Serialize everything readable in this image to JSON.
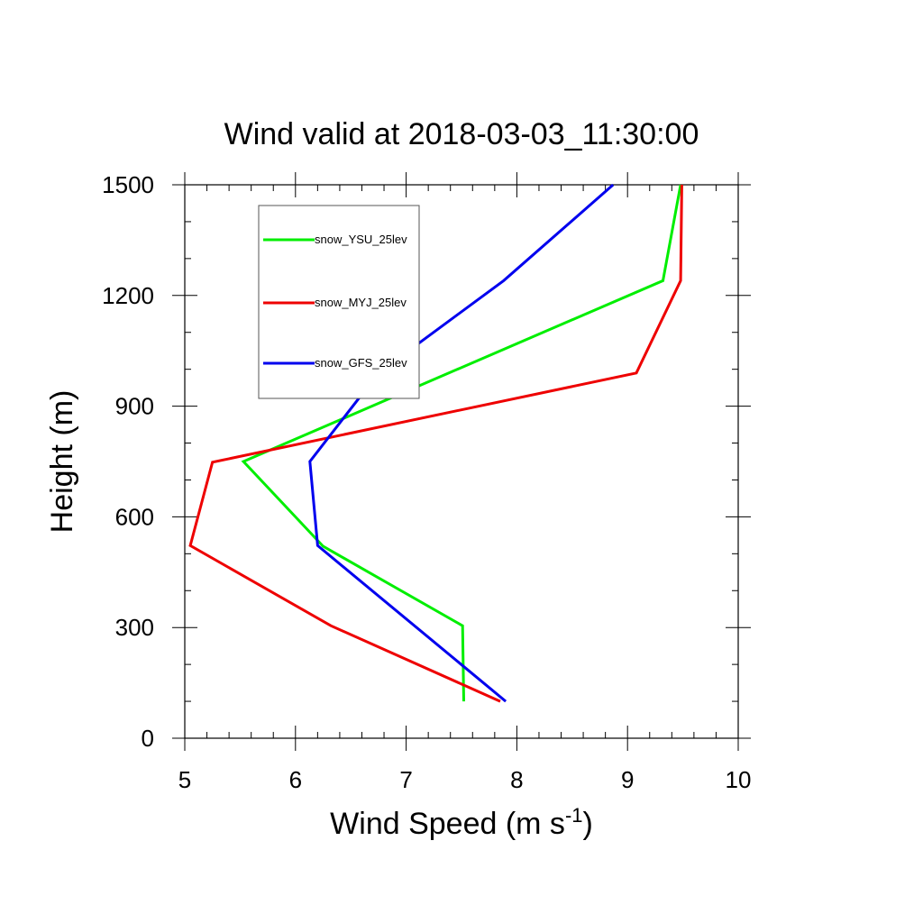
{
  "chart_data": {
    "type": "line",
    "title": "Wind valid at 2018-03-03_11:30:00",
    "xlabel": "Wind Speed (m s",
    "xlabel_sup": "-1",
    "xlabel_close": ")",
    "ylabel": "Height (m)",
    "xlim": [
      5,
      10
    ],
    "ylim": [
      0,
      1500
    ],
    "xticks": [
      5,
      6,
      7,
      8,
      9,
      10
    ],
    "yticks": [
      0,
      300,
      600,
      900,
      1200,
      1500
    ],
    "grid": false,
    "legend_position": "top-left",
    "series": [
      {
        "name": "snow_YSU_25lev",
        "color": "#00ee00",
        "points": [
          [
            7.52,
            100
          ],
          [
            7.51,
            305
          ],
          [
            6.25,
            520
          ],
          [
            5.53,
            750
          ],
          [
            9.32,
            1240
          ],
          [
            9.48,
            1500
          ]
        ]
      },
      {
        "name": "snow_MYJ_25lev",
        "color": "#ee0000",
        "points": [
          [
            7.85,
            100
          ],
          [
            6.32,
            305
          ],
          [
            5.05,
            522
          ],
          [
            5.25,
            748
          ],
          [
            9.08,
            990
          ],
          [
            9.48,
            1240
          ],
          [
            9.49,
            1500
          ]
        ]
      },
      {
        "name": "snow_GFS_25lev",
        "color": "#0000ee",
        "points": [
          [
            7.9,
            100
          ],
          [
            6.2,
            522
          ],
          [
            6.13,
            750
          ],
          [
            6.75,
            990
          ],
          [
            7.88,
            1240
          ],
          [
            8.87,
            1500
          ]
        ]
      }
    ]
  }
}
